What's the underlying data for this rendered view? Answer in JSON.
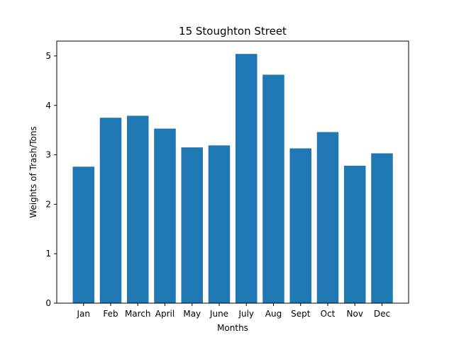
{
  "chart_data": {
    "type": "bar",
    "title": "15 Stoughton Street",
    "xlabel": "Months",
    "ylabel": "Weights of Trash/Tons",
    "categories": [
      "Jan",
      "Feb",
      "March",
      "April",
      "May",
      "June",
      "July",
      "Aug",
      "Sept",
      "Oct",
      "Nov",
      "Dec"
    ],
    "values": [
      2.76,
      3.75,
      3.79,
      3.53,
      3.15,
      3.19,
      5.04,
      4.62,
      3.13,
      3.46,
      2.78,
      3.03
    ],
    "ylim": [
      0,
      5.3
    ],
    "yticks": [
      0,
      1,
      2,
      3,
      4,
      5
    ],
    "bar_color": "#1f77b4",
    "grid": false,
    "legend": "none"
  }
}
